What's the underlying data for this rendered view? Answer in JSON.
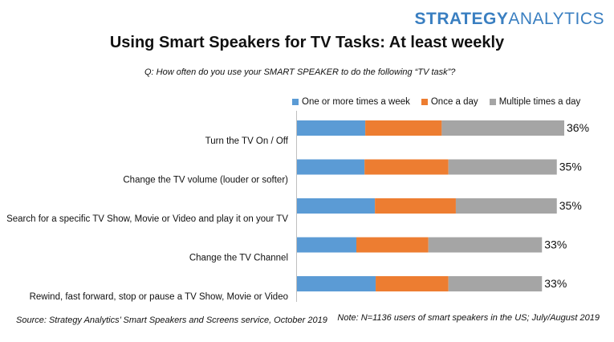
{
  "brand": {
    "part1": "STRATEGY",
    "part2": "ANALYTICS"
  },
  "title": "Using Smart Speakers for TV Tasks: At least weekly",
  "question": "Q: How often do you use your SMART SPEAKER to do the following “TV task”?",
  "source": "Source: Strategy Analytics’ Smart Speakers and Screens service, October 2019",
  "note": "Note: N=1136 users of smart speakers in the US; July/August 2019",
  "colors": {
    "weekly": "#5b9bd5",
    "daily": "#ed7d31",
    "multiple": "#a5a5a5",
    "brand": "#3a7fc1"
  },
  "chart_data": {
    "type": "bar",
    "orientation": "horizontal",
    "stacked": true,
    "categories": [
      "Turn the TV On / Off",
      "Change the TV volume (louder or softer)",
      "Search for a specific TV Show, Movie or Video and play it on your TV",
      "Change the TV Channel",
      "Rewind, fast forward, stop or pause a TV Show, Movie or Video"
    ],
    "series": [
      {
        "name": "One or more times a week",
        "values": [
          9.2,
          9.1,
          10.5,
          8.0,
          10.6
        ]
      },
      {
        "name": "Once a day",
        "values": [
          10.3,
          11.3,
          10.9,
          9.7,
          9.8
        ]
      },
      {
        "name": "Multiple times a day",
        "values": [
          16.5,
          14.6,
          13.6,
          15.3,
          12.6
        ]
      }
    ],
    "totals": [
      "36%",
      "35%",
      "35%",
      "33%",
      "33%"
    ],
    "legend_position": "top",
    "grid": false
  }
}
